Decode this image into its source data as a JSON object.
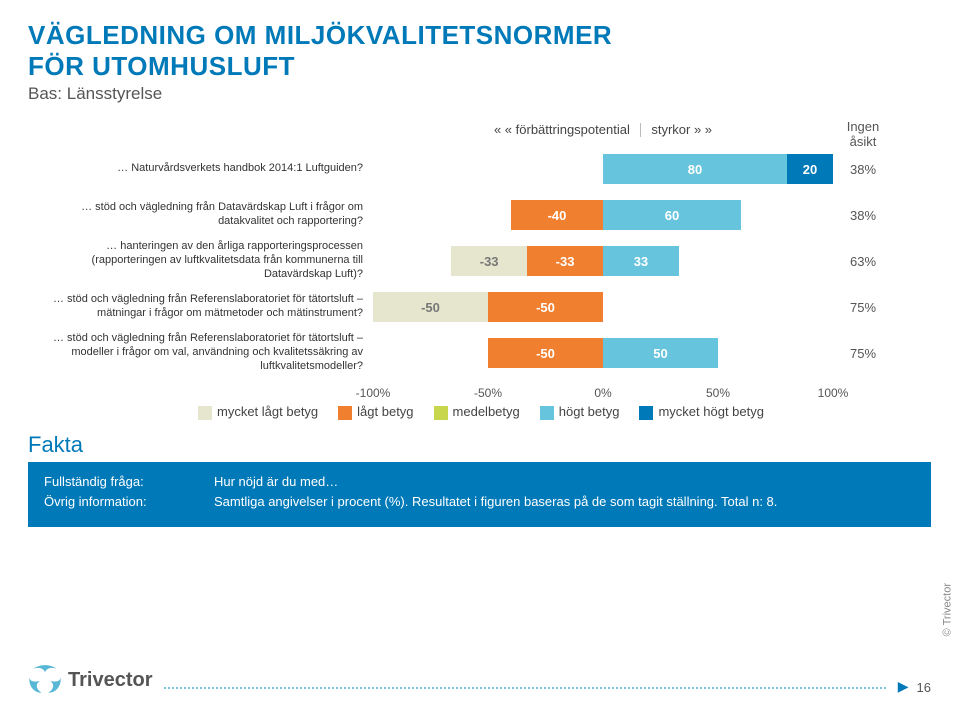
{
  "title_line1": "VÄGLEDNING OM MILJÖKVALITETSNORMER",
  "title_line2": "FÖR UTOMHUSLUFT",
  "subtitle": "Bas: Länsstyrelse",
  "header_left": "« « förbättringspotential",
  "header_right": "styrkor » »",
  "header_pct": "Ingen åsikt",
  "xlim": [
    -100,
    100
  ],
  "ticks": [
    {
      "pos": 0,
      "label": "-100%"
    },
    {
      "pos": 25,
      "label": "-50%"
    },
    {
      "pos": 50,
      "label": "0%"
    },
    {
      "pos": 75,
      "label": "50%"
    },
    {
      "pos": 100,
      "label": "100%"
    }
  ],
  "colors": {
    "c1": "#e6e6cf",
    "c2": "#f08030",
    "c3": "#c7d64a",
    "c4": "#66c4dd",
    "c5": "#0079b8",
    "txt_light": "#777"
  },
  "rows": [
    {
      "label": "… Naturvårdsverkets handbok 2014:1 Luftguiden?",
      "segments": [
        {
          "color": "c4",
          "from_pct": 50,
          "to_pct": 90,
          "text": "80"
        },
        {
          "color": "c5",
          "from_pct": 90,
          "to_pct": 100,
          "text": "20"
        }
      ],
      "pct": "38%"
    },
    {
      "label": "… stöd och vägledning från Datavärdskap Luft i frågor om datakvalitet och rapportering?",
      "segments": [
        {
          "color": "c2",
          "from_pct": 30,
          "to_pct": 50,
          "text": "-40"
        },
        {
          "color": "c4",
          "from_pct": 50,
          "to_pct": 80,
          "text": "60"
        }
      ],
      "pct": "38%"
    },
    {
      "label": "… hanteringen av den årliga rapporteringsprocessen (rapporteringen av luftkvalitetsdata från kommunerna till Datavärdskap Luft)?",
      "segments": [
        {
          "color": "c1",
          "from_pct": 17,
          "to_pct": 33.5,
          "text": "-33",
          "lighttext": true
        },
        {
          "color": "c2",
          "from_pct": 33.5,
          "to_pct": 50,
          "text": "-33"
        },
        {
          "color": "c4",
          "from_pct": 50,
          "to_pct": 66.5,
          "text": "33"
        }
      ],
      "pct": "63%"
    },
    {
      "label": "… stöd och vägledning från Referenslaboratoriet för tätortsluft – mätningar i frågor om mätmetoder och mätinstrument?",
      "segments": [
        {
          "color": "c1",
          "from_pct": 0,
          "to_pct": 25,
          "text": "-50",
          "lighttext": true
        },
        {
          "color": "c2",
          "from_pct": 25,
          "to_pct": 50,
          "text": "-50"
        }
      ],
      "pct": "75%"
    },
    {
      "label": "… stöd och vägledning från Referenslaboratoriet för tätortsluft – modeller i frågor om val, användning och kvalitetssäkring av luftkvalitetsmodeller?",
      "segments": [
        {
          "color": "c2",
          "from_pct": 25,
          "to_pct": 50,
          "text": "-50"
        },
        {
          "color": "c4",
          "from_pct": 50,
          "to_pct": 75,
          "text": "50"
        }
      ],
      "pct": "75%"
    }
  ],
  "legend_items": [
    {
      "color": "c1",
      "label": "mycket lågt betyg"
    },
    {
      "color": "c2",
      "label": "lågt betyg"
    },
    {
      "color": "c3",
      "label": "medelbetyg"
    },
    {
      "color": "c4",
      "label": "högt betyg"
    },
    {
      "color": "c5",
      "label": "mycket högt betyg"
    }
  ],
  "fakta_heading": "Fakta",
  "fakta": {
    "l1": "Fullständig fråga:",
    "l2": "Övrig information:",
    "v1": "Hur nöjd är du med…",
    "v2": "Samtliga angivelser i procent (%). Resultatet i figuren baseras på de som tagit ställning. Total n: 8."
  },
  "logo_text": "Trivector",
  "page_number": "16",
  "side_copy": "© Trivector"
}
